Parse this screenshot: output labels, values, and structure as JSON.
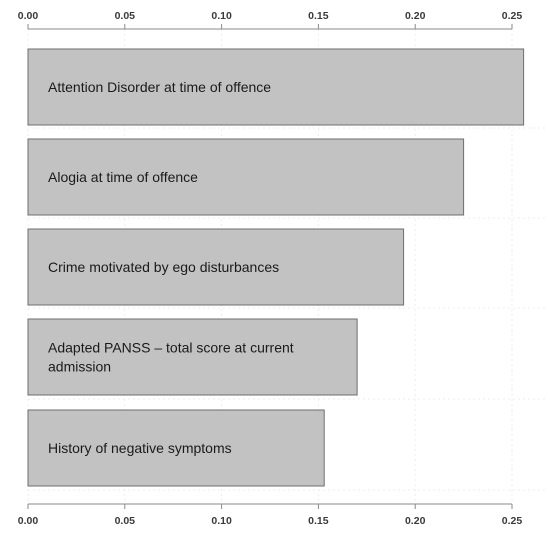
{
  "chart_data": {
    "type": "bar",
    "orientation": "horizontal",
    "title": "",
    "xlabel": "",
    "ylabel": "",
    "xlim": [
      0,
      0.25
    ],
    "x_ticks": [
      "0.00",
      "0.05",
      "0.10",
      "0.15",
      "0.20",
      "0.25"
    ],
    "axis_positions": [
      "top",
      "bottom"
    ],
    "grid": true,
    "categories": [
      [
        "Attention Disorder at time of offence"
      ],
      [
        "Alogia at time of offence"
      ],
      [
        "Crime motivated by ego disturbances"
      ],
      [
        "Adapted PANSS – total score at current",
        "admission"
      ],
      [
        "History of negative symptoms"
      ]
    ],
    "values": [
      0.256,
      0.225,
      0.194,
      0.17,
      0.153
    ],
    "bar_color": "#c2c2c2",
    "bar_edge_color": "#6e6e6e"
  }
}
